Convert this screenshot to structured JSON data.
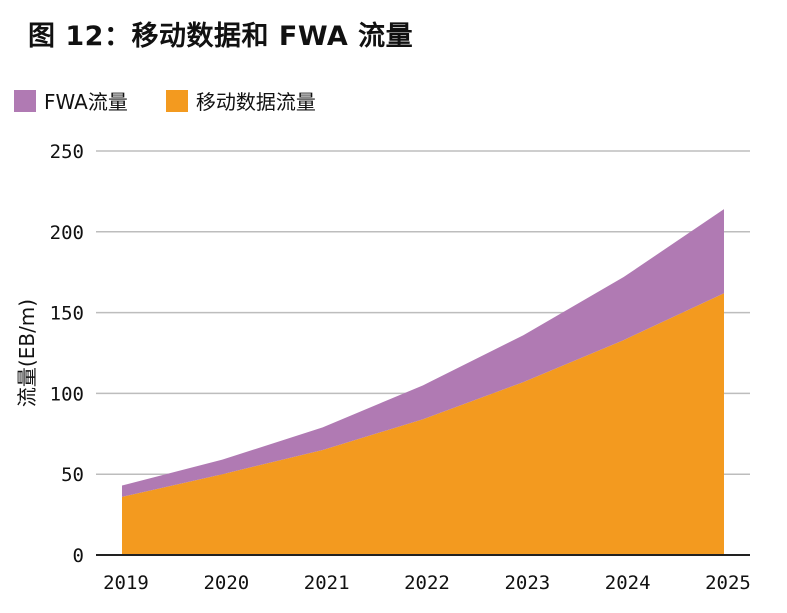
{
  "chart_data": {
    "type": "area",
    "stacked": true,
    "title": "图 12：移动数据和 FWA 流量",
    "ylabel": "流量(EB/m)",
    "xlabel": "",
    "categories": [
      "2019",
      "2020",
      "2021",
      "2022",
      "2023",
      "2024",
      "2025"
    ],
    "ylim": [
      0,
      250
    ],
    "yticks": [
      0,
      50,
      100,
      150,
      200,
      250
    ],
    "grid": true,
    "legend_position": "top-left",
    "series": [
      {
        "name": "移动数据流量",
        "color": "#F39A1F",
        "values": [
          36,
          50,
          65,
          84,
          107,
          133,
          162
        ]
      },
      {
        "name": "FWA流量",
        "color": "#B07AB3",
        "values": [
          7,
          9,
          14,
          21,
          29,
          39,
          52
        ]
      }
    ]
  },
  "legend": [
    {
      "label": "FWA流量",
      "color": "#B07AB3"
    },
    {
      "label": "移动数据流量",
      "color": "#F39A1F"
    }
  ]
}
